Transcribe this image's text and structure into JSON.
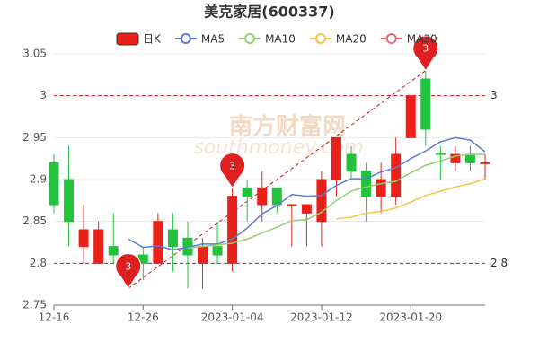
{
  "chart_data": {
    "type": "candlestick",
    "title": "美克家居(600337)",
    "candle_name": "日K",
    "up_color": "#e8221a",
    "down_color": "#22c23c",
    "categories": [
      "12-16",
      null,
      null,
      null,
      null,
      null,
      "12-26",
      null,
      null,
      null,
      null,
      null,
      "2023-01-04",
      null,
      null,
      null,
      null,
      null,
      "2023-01-12",
      null,
      null,
      null,
      null,
      null,
      "2023-01-20",
      null,
      null,
      null,
      null,
      null
    ],
    "open": [
      2.92,
      2.9,
      2.82,
      2.8,
      2.82,
      2.79,
      2.81,
      2.8,
      2.84,
      2.83,
      2.8,
      2.82,
      2.8,
      2.89,
      2.87,
      2.89,
      2.87,
      2.86,
      2.85,
      2.9,
      2.93,
      2.91,
      2.88,
      2.88,
      2.95,
      3.02,
      2.931,
      2.92,
      2.93,
      2.92
    ],
    "close": [
      2.87,
      2.85,
      2.84,
      2.84,
      2.81,
      2.8,
      2.8,
      2.85,
      2.82,
      2.81,
      2.82,
      2.81,
      2.88,
      2.88,
      2.89,
      2.87,
      2.87,
      2.87,
      2.9,
      2.95,
      2.91,
      2.88,
      2.9,
      2.93,
      3.0,
      2.96,
      2.93,
      2.93,
      2.92,
      2.92
    ],
    "high": [
      2.93,
      2.94,
      2.87,
      2.85,
      2.86,
      2.81,
      2.82,
      2.86,
      2.86,
      2.85,
      2.83,
      2.85,
      2.89,
      2.9,
      2.91,
      2.89,
      2.87,
      2.87,
      2.91,
      2.95,
      2.94,
      2.92,
      2.92,
      2.95,
      3.0,
      3.03,
      2.94,
      2.94,
      2.94,
      2.93
    ],
    "low": [
      2.86,
      2.82,
      2.8,
      2.8,
      2.8,
      2.77,
      2.78,
      2.8,
      2.79,
      2.77,
      2.77,
      2.8,
      2.79,
      2.85,
      2.85,
      2.86,
      2.82,
      2.82,
      2.82,
      2.88,
      2.9,
      2.85,
      2.86,
      2.87,
      2.95,
      2.94,
      2.9,
      2.91,
      2.91,
      2.9
    ],
    "series": [
      {
        "name": "MA5",
        "color": "#5b7bd5",
        "values": [
          null,
          null,
          null,
          null,
          null,
          2.829,
          2.819,
          2.821,
          2.816,
          2.819,
          2.823,
          2.823,
          2.829,
          2.842,
          2.859,
          2.869,
          2.882,
          2.88,
          2.881,
          2.893,
          2.901,
          2.901,
          2.909,
          2.914,
          2.925,
          2.934,
          2.945,
          2.95,
          2.947,
          2.933
        ]
      },
      {
        "name": "MA10",
        "color": "#93cf6f",
        "values": [
          null,
          null,
          null,
          null,
          null,
          null,
          null,
          null,
          null,
          2.818,
          2.82,
          2.822,
          2.824,
          2.829,
          2.836,
          2.843,
          2.851,
          2.852,
          2.861,
          2.875,
          2.886,
          2.891,
          2.895,
          2.898,
          2.908,
          2.917,
          2.922,
          2.928,
          2.93,
          2.93
        ]
      },
      {
        "name": "MA20",
        "color": "#f6c548",
        "values": [
          null,
          null,
          null,
          null,
          null,
          null,
          null,
          null,
          null,
          null,
          null,
          null,
          null,
          null,
          null,
          null,
          null,
          null,
          null,
          2.853,
          2.855,
          2.86,
          2.862,
          2.866,
          2.873,
          2.881,
          2.886,
          2.891,
          2.895,
          2.901
        ]
      },
      {
        "name": "MA30",
        "color": "#e86a6a",
        "values": [
          null,
          null,
          null,
          null,
          null,
          null,
          null,
          null,
          null,
          null,
          null,
          null,
          null,
          null,
          null,
          null,
          null,
          null,
          null,
          null,
          null,
          null,
          null,
          null,
          null,
          null,
          null,
          null,
          null,
          null
        ]
      }
    ],
    "ylim": [
      2.75,
      3.05
    ],
    "yticks": [
      2.75,
      2.8,
      2.85,
      2.9,
      2.95,
      3,
      3.05
    ],
    "grid": true,
    "reference_lines": [
      {
        "value": 3,
        "color": "#c8141e"
      },
      {
        "value": 2.8,
        "color": "#c8141e"
      }
    ],
    "markers": [
      {
        "index": 5,
        "value": 2.77,
        "label": "3"
      },
      {
        "index": 12,
        "value": 2.89,
        "label": "3"
      },
      {
        "index": 25,
        "value": 3.03,
        "label": "3"
      }
    ],
    "watermark": "南方财富网",
    "watermark_sub": "southmoney.com"
  }
}
